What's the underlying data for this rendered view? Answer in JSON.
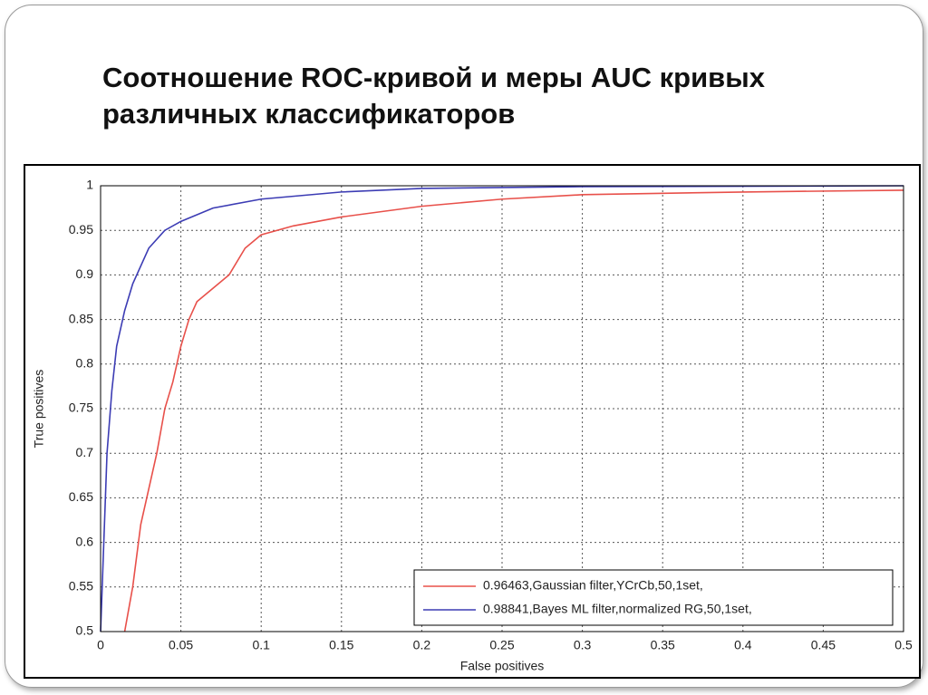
{
  "chart_data": {
    "type": "line",
    "title": "Соотношение ROC-кривой и меры AUC кривых различных классификаторов",
    "x_label": "False positives",
    "y_label": "True positives",
    "xlim": [
      0,
      0.5
    ],
    "ylim": [
      0.5,
      1
    ],
    "xticks": [
      0,
      0.05,
      0.1,
      0.15,
      0.2,
      0.25,
      0.3,
      0.35,
      0.4,
      0.45,
      0.5
    ],
    "yticks": [
      0.5,
      0.55,
      0.6,
      0.65,
      0.7,
      0.75,
      0.8,
      0.85,
      0.9,
      0.95,
      1
    ],
    "grid": true,
    "legend": "lower right",
    "series": [
      {
        "name": "0.96463,Gaussian filter,YCrCb,50,1set,",
        "color": "#e8504a",
        "x": [
          0.015,
          0.02,
          0.025,
          0.03,
          0.035,
          0.04,
          0.045,
          0.05,
          0.055,
          0.06,
          0.07,
          0.08,
          0.09,
          0.1,
          0.12,
          0.15,
          0.2,
          0.25,
          0.3,
          0.4,
          0.5
        ],
        "values": [
          0.5,
          0.55,
          0.62,
          0.66,
          0.7,
          0.75,
          0.78,
          0.82,
          0.85,
          0.87,
          0.885,
          0.9,
          0.93,
          0.945,
          0.955,
          0.965,
          0.977,
          0.985,
          0.99,
          0.993,
          0.995
        ]
      },
      {
        "name": "0.98841,Bayes ML filter,normalized RG,50,1set,",
        "color": "#3c3cb4",
        "x": [
          0,
          0.002,
          0.004,
          0.007,
          0.01,
          0.015,
          0.02,
          0.03,
          0.04,
          0.05,
          0.07,
          0.1,
          0.15,
          0.2,
          0.3,
          0.5
        ],
        "values": [
          0.5,
          0.6,
          0.7,
          0.77,
          0.82,
          0.86,
          0.89,
          0.93,
          0.95,
          0.96,
          0.975,
          0.985,
          0.993,
          0.997,
          0.999,
          1
        ]
      }
    ]
  }
}
